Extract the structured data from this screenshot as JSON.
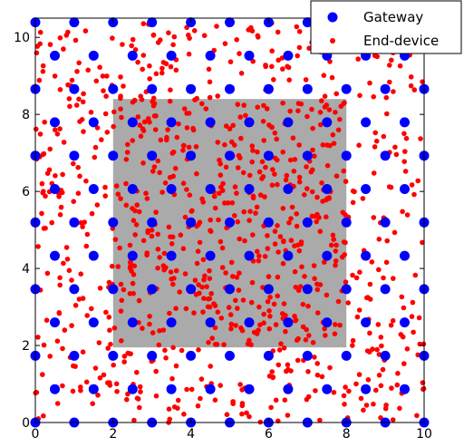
{
  "chart_data": {
    "type": "scatter",
    "xlim": [
      0,
      10
    ],
    "ylim": [
      0,
      10.5
    ],
    "x_ticks": [
      "0",
      "2",
      "4",
      "6",
      "8",
      "10"
    ],
    "y_ticks": [
      "0",
      "2",
      "4",
      "6",
      "8",
      "10"
    ],
    "x_tick_values": [
      0,
      2,
      4,
      6,
      8,
      10
    ],
    "y_tick_values": [
      0,
      2,
      4,
      6,
      8,
      10
    ],
    "grid": false,
    "legend_position": "top-right",
    "shaded_region": {
      "x": [
        2,
        8
      ],
      "y": [
        1.95,
        8.4
      ],
      "color": "#aaaaaa"
    },
    "series": [
      {
        "name": "Gateway",
        "color": "#0000ff",
        "pattern": "hexagonal grid",
        "x_spacing": 1.0,
        "y_spacing": 0.866,
        "row_offset": 0.5
      },
      {
        "name": "End-device",
        "color": "#ff0000",
        "count": 950,
        "distribution": "uniform random, denser inside shaded region"
      }
    ]
  }
}
